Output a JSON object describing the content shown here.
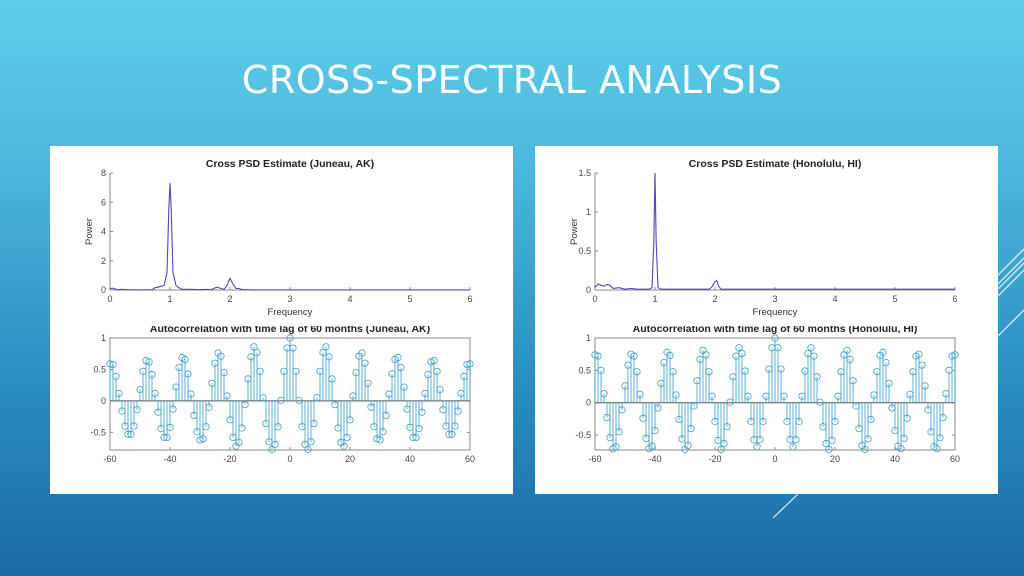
{
  "slide": {
    "title": "CROSS-SPECTRAL ANALYSIS",
    "colors": {
      "bg_top": "#5ccfeb",
      "bg_bottom": "#1b6ba6",
      "psd_line": "#4b4bb8",
      "stem": "#3a9ccd",
      "axis": "#606060"
    }
  },
  "chart_data": [
    {
      "id": "psd-juneau",
      "type": "line",
      "title": "Cross PSD Estimate (Juneau, AK)",
      "xlabel": "Frequency",
      "ylabel": "Power",
      "xlim": [
        0,
        6
      ],
      "ylim": [
        0,
        8
      ],
      "xticks": [
        "0",
        "1",
        "2",
        "3",
        "4",
        "5",
        "6"
      ],
      "yticks": [
        "0",
        "2",
        "4",
        "6",
        "8"
      ],
      "grid": false,
      "x": [
        0,
        0.05,
        0.1,
        0.15,
        0.2,
        0.3,
        0.5,
        0.7,
        0.75,
        0.85,
        0.9,
        0.95,
        0.98,
        1.0,
        1.02,
        1.05,
        1.1,
        1.15,
        1.2,
        1.3,
        1.5,
        1.7,
        1.78,
        1.85,
        1.9,
        1.95,
        2.0,
        2.05,
        2.1,
        2.15,
        2.2,
        2.4,
        3.0,
        4.0,
        5.0,
        6.0
      ],
      "y": [
        0.1,
        0.12,
        0.05,
        0.02,
        0.05,
        0.02,
        0.01,
        0.02,
        0.15,
        0.25,
        0.3,
        1.2,
        5.5,
        7.3,
        5.5,
        1.2,
        0.3,
        0.15,
        0.05,
        0.05,
        0.03,
        0.05,
        0.2,
        0.1,
        0.05,
        0.3,
        0.8,
        0.4,
        0.1,
        0.1,
        0.03,
        0.01,
        0.01,
        0.01,
        0.01,
        0.01
      ]
    },
    {
      "id": "acf-juneau",
      "type": "stem",
      "title": "Autocorrelation with time lag of 60 months (Juneau, AK)",
      "xlabel": "",
      "ylabel": "",
      "xlim": [
        -60,
        60
      ],
      "ylim": [
        -0.78,
        1
      ],
      "xticks": [
        "-60",
        "-40",
        "-20",
        "0",
        "20",
        "40",
        "60"
      ],
      "yticks": [
        "-0.5",
        "0",
        "0.5",
        "1"
      ],
      "x": [
        -60,
        -59,
        -58,
        -57,
        -56,
        -55,
        -54,
        -53,
        -52,
        -51,
        -50,
        -49,
        -48,
        -47,
        -46,
        -45,
        -44,
        -43,
        -42,
        -41,
        -40,
        -39,
        -38,
        -37,
        -36,
        -35,
        -34,
        -33,
        -32,
        -31,
        -30,
        -29,
        -28,
        -27,
        -26,
        -25,
        -24,
        -23,
        -22,
        -21,
        -20,
        -19,
        -18,
        -17,
        -16,
        -15,
        -14,
        -13,
        -12,
        -11,
        -10,
        -9,
        -8,
        -7,
        -6,
        -5,
        -4,
        -3,
        -2,
        -1,
        0,
        1,
        2,
        3,
        4,
        5,
        6,
        7,
        8,
        9,
        10,
        11,
        12,
        13,
        14,
        15,
        16,
        17,
        18,
        19,
        20,
        21,
        22,
        23,
        24,
        25,
        26,
        27,
        28,
        29,
        30,
        31,
        32,
        33,
        34,
        35,
        36,
        37,
        38,
        39,
        40,
        41,
        42,
        43,
        44,
        45,
        46,
        47,
        48,
        49,
        50,
        51,
        52,
        53,
        54,
        55,
        56,
        57,
        58,
        59,
        60
      ],
      "values": [
        0.59,
        0.58,
        0.39,
        0.12,
        -0.16,
        -0.4,
        -0.53,
        -0.53,
        -0.4,
        -0.14,
        0.18,
        0.47,
        0.64,
        0.62,
        0.42,
        0.12,
        -0.18,
        -0.44,
        -0.58,
        -0.58,
        -0.42,
        -0.13,
        0.22,
        0.53,
        0.69,
        0.66,
        0.43,
        0.11,
        -0.23,
        -0.49,
        -0.62,
        -0.6,
        -0.41,
        -0.1,
        0.28,
        0.6,
        0.76,
        0.71,
        0.45,
        0.08,
        -0.3,
        -0.58,
        -0.72,
        -0.66,
        -0.43,
        -0.06,
        0.35,
        0.7,
        0.86,
        0.77,
        0.47,
        0.05,
        -0.36,
        -0.65,
        -0.77,
        -0.69,
        -0.41,
        0.01,
        0.47,
        0.84,
        1.0,
        0.84,
        0.47,
        0.01,
        -0.41,
        -0.69,
        -0.77,
        -0.65,
        -0.36,
        0.05,
        0.47,
        0.77,
        0.86,
        0.7,
        0.35,
        -0.06,
        -0.43,
        -0.66,
        -0.72,
        -0.58,
        -0.3,
        0.08,
        0.45,
        0.71,
        0.76,
        0.6,
        0.28,
        -0.1,
        -0.41,
        -0.6,
        -0.62,
        -0.49,
        -0.23,
        0.11,
        0.43,
        0.66,
        0.69,
        0.53,
        0.22,
        -0.13,
        -0.42,
        -0.58,
        -0.58,
        -0.44,
        -0.18,
        0.12,
        0.42,
        0.62,
        0.64,
        0.47,
        0.18,
        -0.14,
        -0.4,
        -0.53,
        -0.53,
        -0.4,
        -0.16,
        0.12,
        0.39,
        0.58,
        0.59
      ]
    },
    {
      "id": "psd-honolulu",
      "type": "line",
      "title": "Cross PSD Estimate (Honolulu, HI)",
      "xlabel": "Frequency",
      "ylabel": "Power",
      "xlim": [
        0,
        6
      ],
      "ylim": [
        0,
        1.5
      ],
      "xticks": [
        "0",
        "1",
        "2",
        "3",
        "4",
        "5",
        "6"
      ],
      "yticks": [
        "0",
        "0.5",
        "1",
        "1.5"
      ],
      "grid": false,
      "x": [
        0,
        0.05,
        0.1,
        0.15,
        0.2,
        0.25,
        0.3,
        0.4,
        0.5,
        0.6,
        0.7,
        0.9,
        0.95,
        0.98,
        1.0,
        1.02,
        1.05,
        1.1,
        1.3,
        1.6,
        1.9,
        1.95,
        2.0,
        2.03,
        2.06,
        2.1,
        2.3,
        3.0,
        4.0,
        5.0,
        6.0
      ],
      "y": [
        0.03,
        0.08,
        0.06,
        0.05,
        0.07,
        0.06,
        0.02,
        0.03,
        0.01,
        0.02,
        0.01,
        0.01,
        0.03,
        0.6,
        1.5,
        0.6,
        0.03,
        0.01,
        0.01,
        0.01,
        0.01,
        0.04,
        0.11,
        0.12,
        0.05,
        0.01,
        0.01,
        0.01,
        0.01,
        0.01,
        0.01
      ]
    },
    {
      "id": "acf-honolulu",
      "type": "stem",
      "title": "Autocorrelation with time lag of 60 months (Honolulu, HI)",
      "xlabel": "",
      "ylabel": "",
      "xlim": [
        -60,
        60
      ],
      "ylim": [
        -0.73,
        1
      ],
      "xticks": [
        "-60",
        "-40",
        "-20",
        "0",
        "20",
        "40",
        "60"
      ],
      "yticks": [
        "-0.5",
        "0",
        "0.5",
        "1"
      ],
      "x": [
        -60,
        -59,
        -58,
        -57,
        -56,
        -55,
        -54,
        -53,
        -52,
        -51,
        -50,
        -49,
        -48,
        -47,
        -46,
        -45,
        -44,
        -43,
        -42,
        -41,
        -40,
        -39,
        -38,
        -37,
        -36,
        -35,
        -34,
        -33,
        -32,
        -31,
        -30,
        -29,
        -28,
        -27,
        -26,
        -25,
        -24,
        -23,
        -22,
        -21,
        -20,
        -19,
        -18,
        -17,
        -16,
        -15,
        -14,
        -13,
        -12,
        -11,
        -10,
        -9,
        -8,
        -7,
        -6,
        -5,
        -4,
        -3,
        -2,
        -1,
        0,
        1,
        2,
        3,
        4,
        5,
        6,
        7,
        8,
        9,
        10,
        11,
        12,
        13,
        14,
        15,
        16,
        17,
        18,
        19,
        20,
        21,
        22,
        23,
        24,
        25,
        26,
        27,
        28,
        29,
        30,
        31,
        32,
        33,
        34,
        35,
        36,
        37,
        38,
        39,
        40,
        41,
        42,
        43,
        44,
        45,
        46,
        47,
        48,
        49,
        50,
        51,
        52,
        53,
        54,
        55,
        56,
        57,
        58,
        59,
        60
      ],
      "values": [
        0.74,
        0.72,
        0.5,
        0.14,
        -0.23,
        -0.54,
        -0.71,
        -0.68,
        -0.45,
        -0.11,
        0.26,
        0.58,
        0.75,
        0.72,
        0.48,
        0.13,
        -0.24,
        -0.55,
        -0.71,
        -0.67,
        -0.43,
        -0.08,
        0.3,
        0.62,
        0.78,
        0.73,
        0.48,
        0.12,
        -0.26,
        -0.56,
        -0.72,
        -0.66,
        -0.4,
        -0.05,
        0.34,
        0.67,
        0.81,
        0.74,
        0.48,
        0.1,
        -0.29,
        -0.58,
        -0.72,
        -0.63,
        -0.37,
        0.01,
        0.4,
        0.72,
        0.85,
        0.76,
        0.49,
        0.1,
        -0.29,
        -0.57,
        -0.68,
        -0.57,
        -0.29,
        0.1,
        0.52,
        0.85,
        1.0,
        0.85,
        0.52,
        0.1,
        -0.29,
        -0.57,
        -0.68,
        -0.57,
        -0.29,
        0.1,
        0.49,
        0.76,
        0.85,
        0.72,
        0.4,
        0.01,
        -0.37,
        -0.63,
        -0.72,
        -0.58,
        -0.29,
        0.1,
        0.48,
        0.74,
        0.81,
        0.67,
        0.34,
        -0.05,
        -0.4,
        -0.66,
        -0.72,
        -0.56,
        -0.26,
        0.12,
        0.48,
        0.73,
        0.78,
        0.62,
        0.3,
        -0.08,
        -0.43,
        -0.67,
        -0.71,
        -0.55,
        -0.24,
        0.13,
        0.48,
        0.72,
        0.75,
        0.58,
        0.26,
        -0.11,
        -0.45,
        -0.68,
        -0.71,
        -0.54,
        -0.23,
        0.14,
        0.5,
        0.72,
        0.74
      ]
    }
  ]
}
